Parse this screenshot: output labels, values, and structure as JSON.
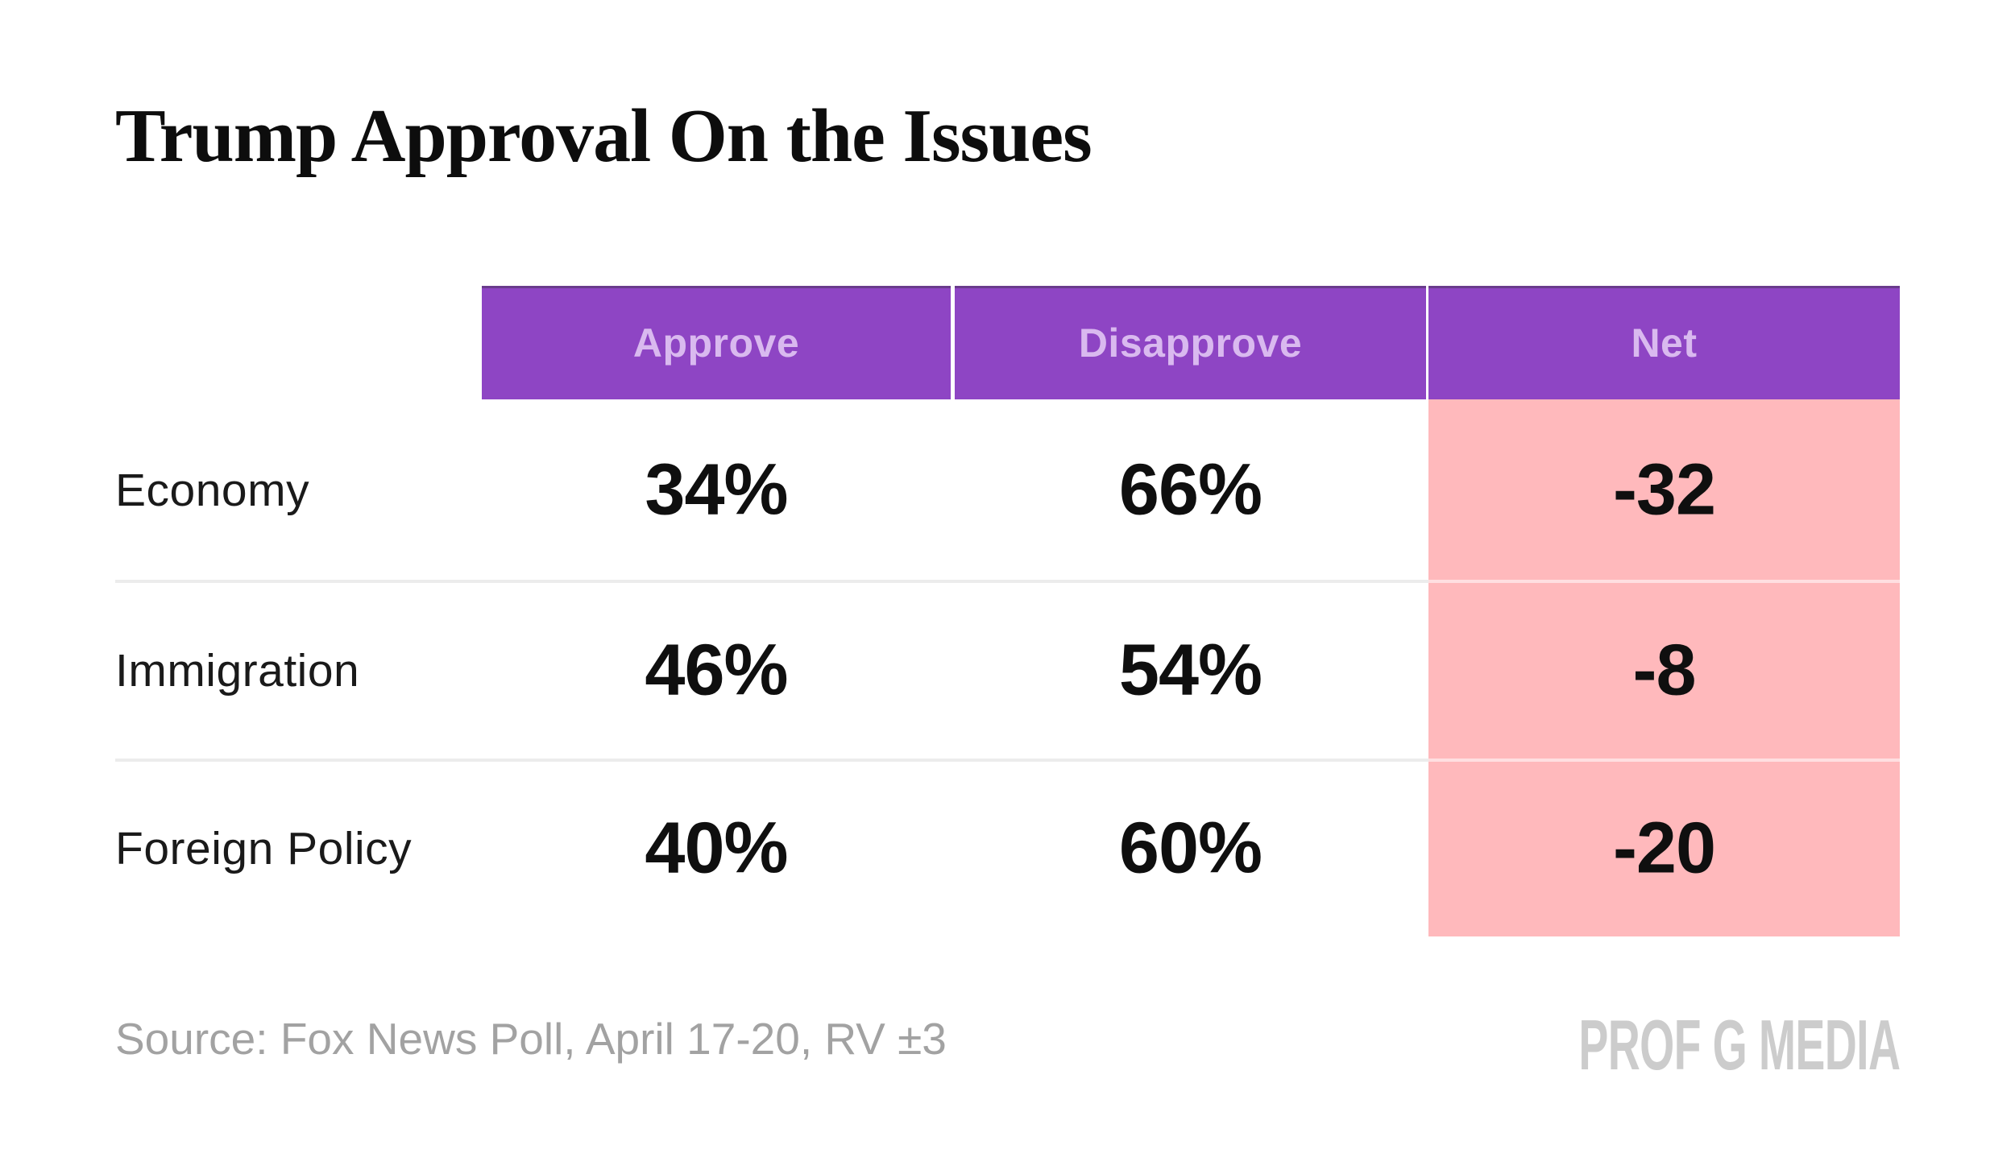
{
  "page": {
    "title": "Trump Approval On the Issues",
    "source_note": "Source: Fox News Poll, April 17-20, RV ±3",
    "brand": "PROF G MEDIA"
  },
  "colors": {
    "header_bg": "#8E45C4",
    "header_text": "#D9B9EF",
    "net_column_bg": "#FFB9BC",
    "divider": "#ECECEC",
    "title_text": "#0D0D0D",
    "body_text": "#0F0F0F",
    "source_text": "#A2A2A2",
    "brand_text": "#CCCCCC"
  },
  "chart_data": {
    "type": "table",
    "title": "Trump Approval On the Issues",
    "columns": [
      "Approve",
      "Disapprove",
      "Net"
    ],
    "rows": [
      {
        "label": "Economy",
        "approve": "34%",
        "disapprove": "66%",
        "net": "-32"
      },
      {
        "label": "Immigration",
        "approve": "46%",
        "disapprove": "54%",
        "net": "-8"
      },
      {
        "label": "Foreign Policy",
        "approve": "40%",
        "disapprove": "60%",
        "net": "-20"
      }
    ],
    "approve_numeric": [
      34,
      46,
      40
    ],
    "disapprove_numeric": [
      66,
      54,
      60
    ],
    "net_numeric": [
      -32,
      -8,
      -20
    ],
    "source": "Fox News Poll, April 17-20, RV ±3",
    "legend_position": "none",
    "grid": "horizontal-dividers-only",
    "net_column_highlighted": true
  }
}
